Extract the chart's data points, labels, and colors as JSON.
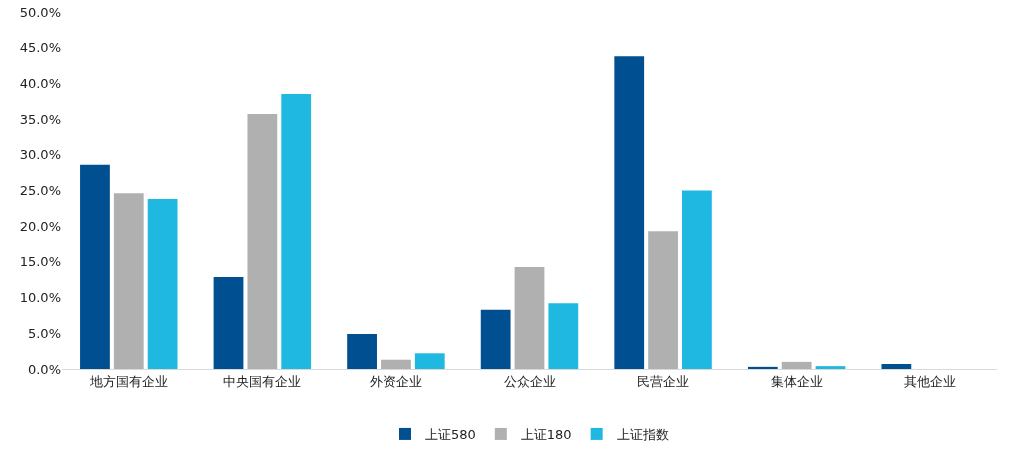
{
  "chart_data": {
    "type": "bar",
    "categories": [
      "地方国有企业",
      "中央国有企业",
      "外资企业",
      "公众企业",
      "民营企业",
      "集体企业",
      "其他企业"
    ],
    "series": [
      {
        "name": "上证580",
        "color": "#004f91",
        "values": [
          28.6,
          12.9,
          4.9,
          8.3,
          43.8,
          0.3,
          0.7
        ]
      },
      {
        "name": "上证180",
        "color": "#b0b0b0",
        "values": [
          24.6,
          35.7,
          1.3,
          14.3,
          19.3,
          1.0,
          0
        ]
      },
      {
        "name": "上证指数",
        "color": "#1fb8e0",
        "values": [
          23.8,
          38.5,
          2.2,
          9.2,
          25.0,
          0.4,
          0
        ]
      }
    ],
    "ylim": [
      0,
      50
    ],
    "yticks": [
      {
        "value": 0,
        "label": "0.0%"
      },
      {
        "value": 5,
        "label": "5.0%"
      },
      {
        "value": 10,
        "label": "10.0%"
      },
      {
        "value": 15,
        "label": "15.0%"
      },
      {
        "value": 20,
        "label": "20.0%"
      },
      {
        "value": 25,
        "label": "25.0%"
      },
      {
        "value": 30,
        "label": "30.0%"
      },
      {
        "value": 35,
        "label": "35.0%"
      },
      {
        "value": 40,
        "label": "40.0%"
      },
      {
        "value": 45,
        "label": "45.0%"
      },
      {
        "value": 50,
        "label": "50.0%"
      }
    ],
    "grid": false,
    "legend": "bottom"
  }
}
